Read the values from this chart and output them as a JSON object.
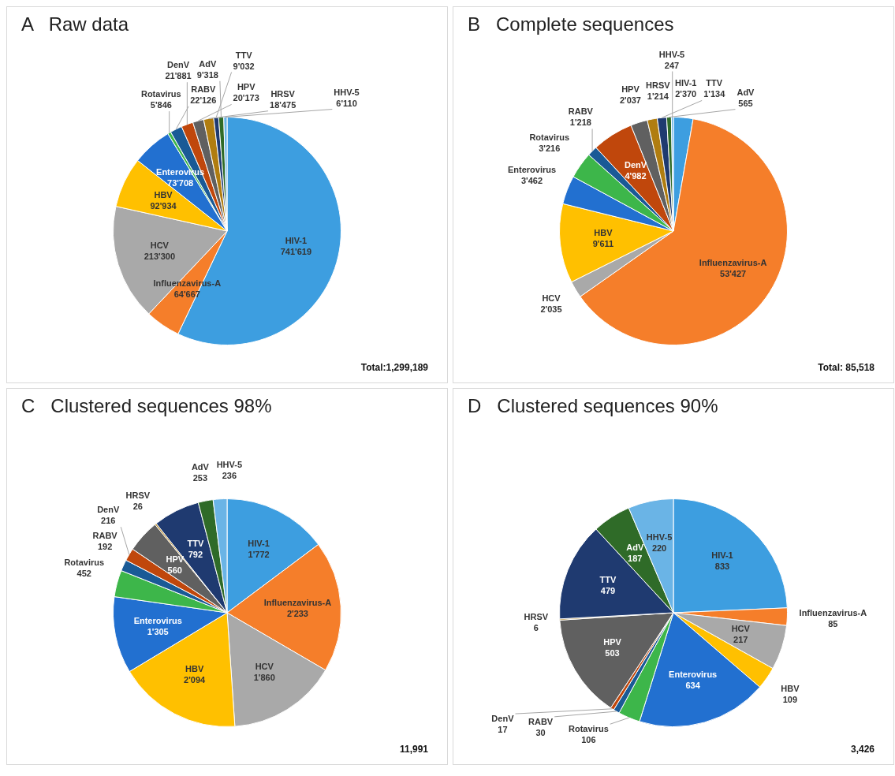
{
  "chart_data": [
    {
      "type": "pie",
      "title": "A   Raw data",
      "legend": false,
      "categories": [
        "HIV-1",
        "Influenzavirus-A",
        "HCV",
        "HBV",
        "Enterovirus",
        "Rotavirus",
        "RABV",
        "DenV",
        "HPV",
        "HRSV",
        "TTV",
        "AdV",
        "HHV-5"
      ],
      "values": [
        741619,
        64667,
        213300,
        92934,
        73708,
        5846,
        22126,
        21881,
        20173,
        18475,
        9032,
        9318,
        6110
      ],
      "value_labels": [
        "741'619",
        "64'667",
        "213'300",
        "92'934",
        "73'708",
        "5'846",
        "22'126",
        "21'881",
        "20'173",
        "18'475",
        "9'032",
        "9'318",
        "6'110"
      ],
      "colors": [
        "#3d9ee0",
        "#f57e2a",
        "#a9a9a9",
        "#ffc000",
        "#2270d0",
        "#3db64a",
        "#1a5a96",
        "#c0470c",
        "#606060",
        "#b07d10",
        "#1f3a70",
        "#2f6b28",
        "#6ab4e6"
      ],
      "annotations": [
        "Total:1,299,189"
      ]
    },
    {
      "type": "pie",
      "title": "B   Complete sequences",
      "legend": false,
      "categories": [
        "HIV-1",
        "Influenzavirus-A",
        "HCV",
        "HBV",
        "Enterovirus",
        "Rotavirus",
        "RABV",
        "DenV",
        "HPV",
        "HRSV",
        "TTV",
        "AdV",
        "HHV-5"
      ],
      "values": [
        2370,
        53427,
        2035,
        9611,
        3462,
        3216,
        1218,
        4982,
        2037,
        1214,
        1134,
        565,
        247
      ],
      "value_labels": [
        "2'370",
        "53'427",
        "2'035",
        "9'611",
        "3'462",
        "3'216",
        "1'218",
        "4'982",
        "2'037",
        "1'214",
        "1'134",
        "565",
        "247"
      ],
      "colors": [
        "#3d9ee0",
        "#f57e2a",
        "#a9a9a9",
        "#ffc000",
        "#2270d0",
        "#3db64a",
        "#1a5a96",
        "#c0470c",
        "#606060",
        "#b07d10",
        "#1f3a70",
        "#2f6b28",
        "#6ab4e6"
      ],
      "annotations": [
        "Total: 85,518"
      ]
    },
    {
      "type": "pie",
      "title": "C   Clustered sequences 98%",
      "legend": false,
      "categories": [
        "HIV-1",
        "Influenzavirus-A",
        "HCV",
        "HBV",
        "Enterovirus",
        "Rotavirus",
        "RABV",
        "DenV",
        "HPV",
        "HRSV",
        "TTV",
        "AdV",
        "HHV-5"
      ],
      "values": [
        1772,
        2233,
        1860,
        2094,
        1305,
        452,
        192,
        216,
        560,
        26,
        792,
        253,
        236
      ],
      "value_labels": [
        "1'772",
        "2'233",
        "1'860",
        "2'094",
        "1'305",
        "452",
        "192",
        "216",
        "560",
        "26",
        "792",
        "253",
        "236"
      ],
      "colors": [
        "#3d9ee0",
        "#f57e2a",
        "#a9a9a9",
        "#ffc000",
        "#2270d0",
        "#3db64a",
        "#1a5a96",
        "#c0470c",
        "#606060",
        "#b07d10",
        "#1f3a70",
        "#2f6b28",
        "#6ab4e6"
      ],
      "annotations": [
        "11,991"
      ]
    },
    {
      "type": "pie",
      "title": "D   Clustered sequences 90%",
      "legend": false,
      "categories": [
        "HIV-1",
        "Influenzavirus-A",
        "HCV",
        "HBV",
        "Enterovirus",
        "Rotavirus",
        "RABV",
        "DenV",
        "HPV",
        "HRSV",
        "TTV",
        "AdV",
        "HHV-5"
      ],
      "values": [
        833,
        85,
        217,
        109,
        634,
        106,
        30,
        17,
        503,
        6,
        479,
        187,
        220
      ],
      "value_labels": [
        "833",
        "85",
        "217",
        "109",
        "634",
        "106",
        "30",
        "17",
        "503",
        "6",
        "479",
        "187",
        "220"
      ],
      "colors": [
        "#3d9ee0",
        "#f57e2a",
        "#a9a9a9",
        "#ffc000",
        "#2270d0",
        "#3db64a",
        "#1a5a96",
        "#c0470c",
        "#606060",
        "#b07d10",
        "#1f3a70",
        "#2f6b28",
        "#6ab4e6"
      ],
      "annotations": [
        "3,426"
      ]
    }
  ]
}
